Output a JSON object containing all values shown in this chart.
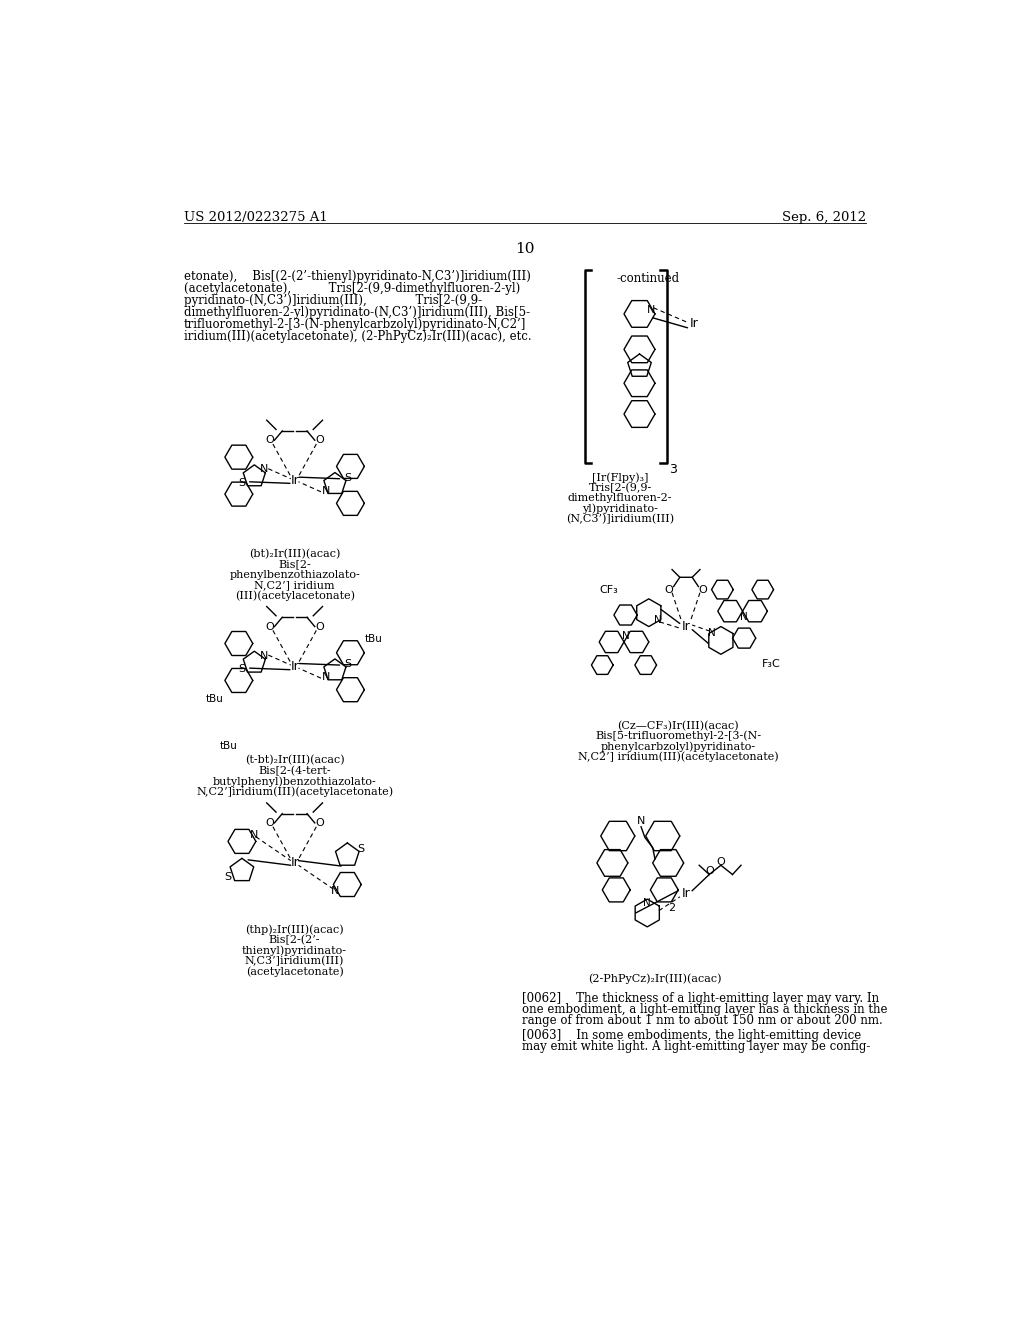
{
  "header_left": "US 2012/0223275 A1",
  "header_right": "Sep. 6, 2012",
  "page_number": "10",
  "background_color": "#ffffff",
  "intro_lines": [
    "etonate),    Bis[(2-(2’-thienyl)pyridinato-N,C3’)]iridium(III)",
    "(acetylacetonate),          Tris[2-(9,9-dimethylfluoren-2-yl)",
    "pyridinato-(N,C3’)]iridium(III),             Tris[2-(9,9-",
    "dimethylfluoren-2-yl)pyridinato-(N,C3’)]iridium(III), Bis[5-",
    "trifluoromethyl-2-[3-(N-phenylcarbzolyl)pyridinato-N,C2’]",
    "iridium(III)(acetylacetonate), (2-PhPyCz)₂Ir(III)(acac), etc."
  ],
  "cap1_lines": [
    "(bt)₂Ir(III)(acac)",
    "Bis[2-",
    "phenylbenzothiazolato-",
    "N,C2’] iridium",
    "(III)(acetylacetonate)"
  ],
  "cap2_lines": [
    "(t-bt)₂Ir(III)(acac)",
    "Bis[2-(4-tert-",
    "butylphenyl)benzothiazolato-",
    "N,C2’]iridium(III)(acetylacetonate)"
  ],
  "cap3_lines": [
    "(thp)₂Ir(III)(acac)",
    "Bis[2-(2’-",
    "thienyl)pyridinato-",
    "N,C3’]iridium(III)",
    "(acetylacetonate)"
  ],
  "cap4_lines": [
    "[Ir(Flpy)₃]",
    "Tris[2-(9,9-",
    "dimethylfluoren-2-",
    "yl)pyridinato-",
    "(N,C3’)]iridium(III)"
  ],
  "cap5_lines": [
    "(Cz—CF₃)Ir(III)(acac)",
    "Bis[5-trifluoromethyl-2-[3-(N-",
    "phenylcarbzolyl)pyridinato-",
    "N,C2’] iridium(III)(acetylacetonate)"
  ],
  "cap6_lines": [
    "(2-PhPyCz)₂Ir(III)(acac)"
  ],
  "body62_lines": [
    "[0062]    The thickness of a light-emitting layer may vary. In",
    "one embodiment, a light-emitting layer has a thickness in the",
    "range of from about 1 nm to about 150 nm or about 200 nm."
  ],
  "body63_lines": [
    "[0063]    In some embodiments, the light-emitting device",
    "may emit white light. A light-emitting layer may be config-"
  ]
}
